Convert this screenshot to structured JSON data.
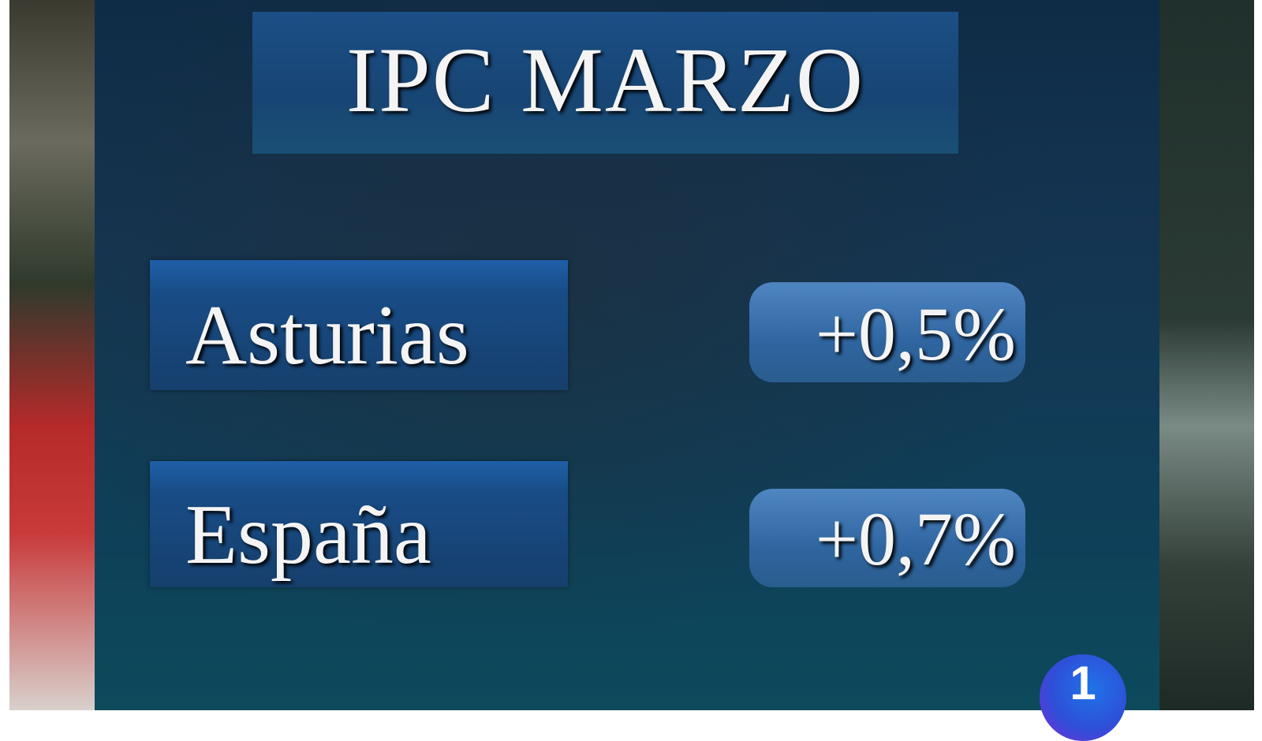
{
  "title": "IPC MARZO",
  "rows": [
    {
      "label": "Asturias",
      "value": "+0,5%"
    },
    {
      "label": "España",
      "value": "+0,7%"
    }
  ],
  "channel_logo": "1",
  "colors": {
    "panel": "#143552",
    "label_box": "#184c86",
    "value_pill": "#2f65a0",
    "text": "#f4f4f4"
  }
}
